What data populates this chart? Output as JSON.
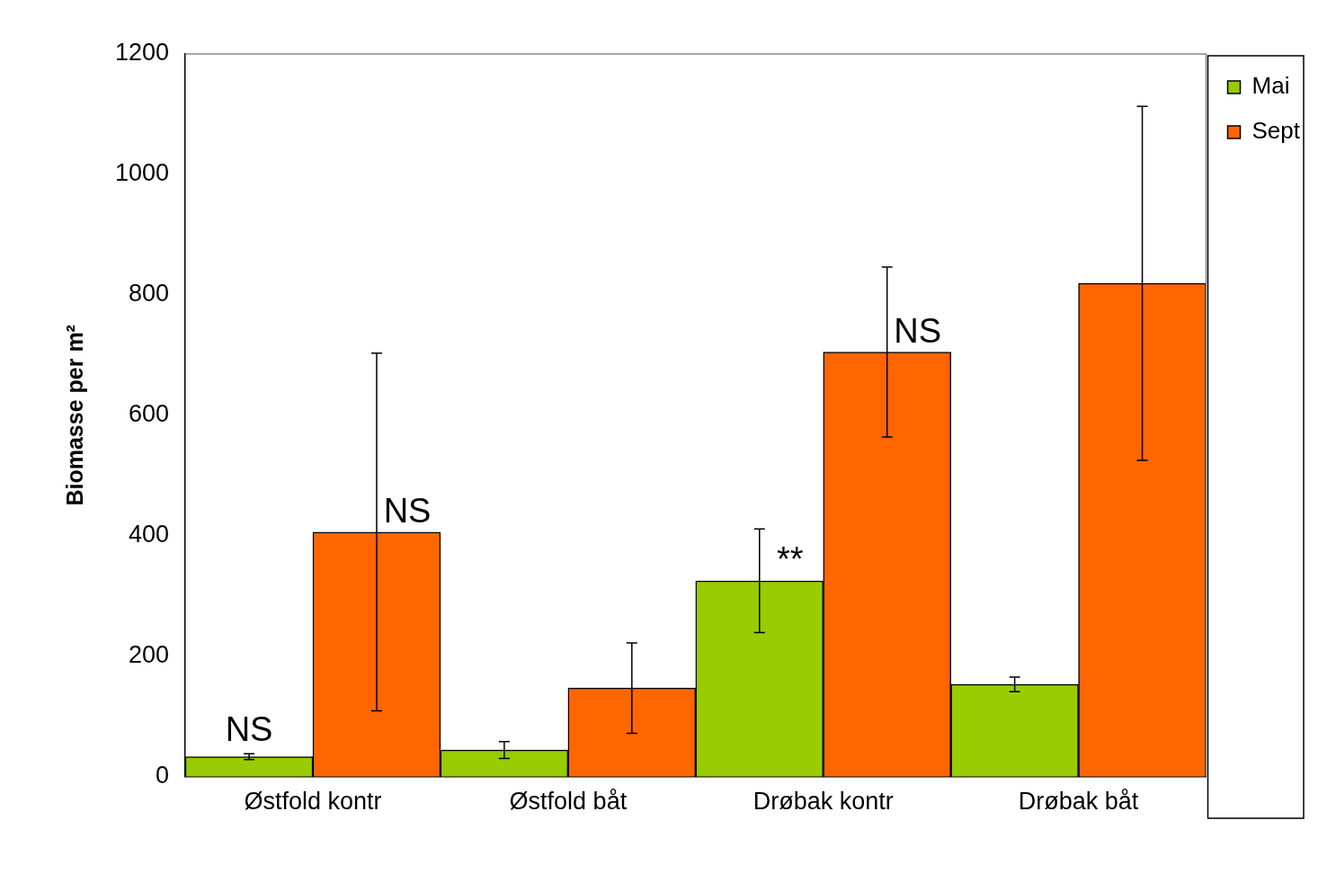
{
  "chart_data": {
    "type": "bar",
    "ylabel": "Biomasse per m²",
    "categories": [
      "Østfold kontr",
      "Østfold båt",
      "Drøbak kontr",
      "Drøbak båt"
    ],
    "series": [
      {
        "name": "Mai",
        "color": "#99cc00",
        "values": [
          33,
          44,
          325,
          153
        ],
        "errors": [
          5,
          14,
          86,
          12
        ],
        "value_labels": [
          "NS",
          null,
          "**",
          null
        ]
      },
      {
        "name": "Sept",
        "color": "#ff6600",
        "values": [
          406,
          147,
          705,
          819
        ],
        "errors": [
          297,
          75,
          141,
          294
        ],
        "value_labels": [
          "NS",
          null,
          "NS",
          null
        ]
      }
    ],
    "ylim": [
      0,
      1200
    ],
    "yticks": [
      0,
      200,
      400,
      600,
      800,
      1000,
      1200
    ],
    "grid": false,
    "legend": "top right"
  }
}
